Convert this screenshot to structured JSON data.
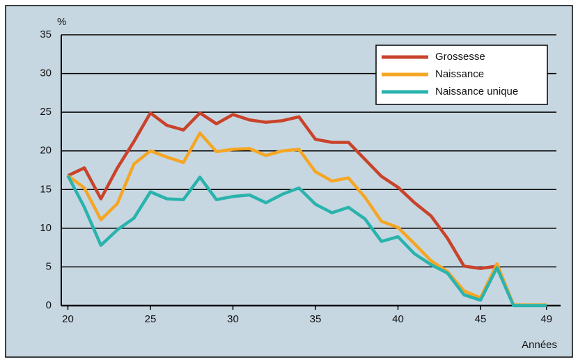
{
  "chart_data": {
    "type": "line",
    "y_label": "%",
    "x_label": "Années",
    "x": [
      20,
      21,
      22,
      23,
      24,
      25,
      26,
      27,
      28,
      29,
      30,
      31,
      32,
      33,
      34,
      35,
      36,
      37,
      38,
      39,
      40,
      41,
      42,
      43,
      44,
      45,
      46,
      47,
      48,
      49
    ],
    "series": [
      {
        "name": "Grossesse",
        "color": "#c8432a",
        "values": [
          16.8,
          17.8,
          13.8,
          17.8,
          21.2,
          24.9,
          23.3,
          22.7,
          24.9,
          23.5,
          24.7,
          24.0,
          23.7,
          23.9,
          24.4,
          21.5,
          21.1,
          21.1,
          18.9,
          16.7,
          15.3,
          13.3,
          11.6,
          8.7,
          5.1,
          4.8,
          5.1,
          null,
          null,
          null
        ]
      },
      {
        "name": "Naissance",
        "color": "#f5a623",
        "values": [
          16.8,
          15.2,
          11.1,
          13.2,
          18.3,
          20.0,
          19.2,
          18.5,
          22.3,
          19.9,
          20.2,
          20.3,
          19.4,
          20.0,
          20.2,
          17.3,
          16.1,
          16.5,
          14.0,
          10.9,
          10.1,
          8.0,
          5.8,
          4.4,
          1.9,
          1.0,
          5.4,
          0.1,
          0.1,
          0.1
        ]
      },
      {
        "name": "Naissance unique",
        "color": "#2ab3ad",
        "values": [
          16.8,
          12.7,
          7.8,
          9.8,
          11.3,
          14.7,
          13.8,
          13.7,
          16.6,
          13.7,
          14.1,
          14.3,
          13.3,
          14.4,
          15.2,
          13.1,
          12.0,
          12.7,
          11.2,
          8.3,
          8.9,
          6.7,
          5.3,
          4.2,
          1.4,
          0.7,
          4.9,
          0,
          0,
          0
        ]
      }
    ],
    "xlim": [
      19.6,
      49.6
    ],
    "xticks": [
      20,
      25,
      30,
      35,
      40,
      45,
      49
    ],
    "ylim": [
      0,
      35
    ],
    "yticks": [
      0,
      5,
      10,
      15,
      20,
      25,
      30,
      35
    ],
    "grid": true,
    "legend": "upper right"
  }
}
